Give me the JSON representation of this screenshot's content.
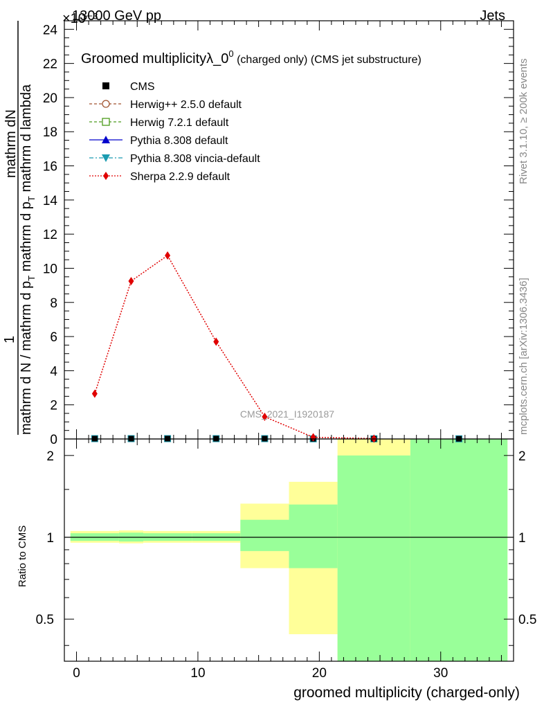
{
  "header": {
    "left": "13000 GeV pp",
    "right": "Jets",
    "exponent": "×10⁻³"
  },
  "side": {
    "rivet": "Rivet 3.1.10, ≥ 200k events",
    "mcplots": "mcplots.cern.ch [arXiv:1306.3436]"
  },
  "chart_data": {
    "type": "line",
    "title": "Groomed multiplicityλ_0",
    "title_sup": "0",
    "title_suffix": " (charged only) (CMS jet substructure)",
    "watermark": "CMS_2021_I1920187",
    "ylabel_top": "mathrm dN",
    "ylabel_one": "1",
    "ylabel_bottom": "mathrm d N / mathrm d p",
    "ylabel_bottom_sub": "T",
    "ylabel_bottom_end": " mathrm d p",
    "ylabel_bottom_sub2": "T",
    "ylabel_bottom_end2": " mathrm d lambda",
    "ratio_ylabel": "Ratio to CMS",
    "xlabel": "groomed multiplicity (charged-only)",
    "xlim": [
      -1,
      36
    ],
    "ylim": [
      0,
      24.5
    ],
    "y_scale_exponent": -3,
    "ratio_ylim": [
      0.35,
      2.3
    ],
    "x_ticks": [
      "0",
      "10",
      "20",
      "30"
    ],
    "y_ticks": [
      "0",
      "2",
      "4",
      "6",
      "8",
      "10",
      "12",
      "14",
      "16",
      "18",
      "20",
      "22",
      "24"
    ],
    "ratio_ticks": [
      "0.5",
      "1",
      "2"
    ],
    "legend": [
      {
        "label": "CMS",
        "color": "#000000",
        "marker": "square-filled",
        "line": "none"
      },
      {
        "label": "Herwig++ 2.5.0 default",
        "color": "#a0522d",
        "marker": "circle-open",
        "line": "dashed"
      },
      {
        "label": "Herwig 7.2.1 default",
        "color": "#4b9a1a",
        "marker": "square-open",
        "line": "dashed"
      },
      {
        "label": "Pythia 8.308 default",
        "color": "#0000cc",
        "marker": "triangle-up",
        "line": "solid"
      },
      {
        "label": "Pythia 8.308 vincia-default",
        "color": "#1a9bb0",
        "marker": "triangle-down",
        "line": "dashdot"
      },
      {
        "label": "Sherpa 2.2.9 default",
        "color": "#e00000",
        "marker": "diamond",
        "line": "dotted"
      }
    ],
    "cms_points": {
      "x": [
        1.5,
        4.5,
        7.5,
        11.5,
        15.5,
        19.5,
        24.5,
        31.5
      ],
      "y": [
        0.02,
        0.02,
        0.02,
        0.02,
        0.02,
        0.01,
        0.01,
        0.01
      ]
    },
    "sherpa_points": {
      "x": [
        1.5,
        4.5,
        7.5,
        11.5,
        15.5,
        19.5,
        24.5
      ],
      "y": [
        2.65,
        9.25,
        10.75,
        5.7,
        1.3,
        0.1,
        0.02
      ]
    },
    "ratio_bands": [
      {
        "x0": -0.5,
        "x1": 3.5,
        "y_lo": 0.955,
        "y_hi": 1.055,
        "g_lo": 0.97,
        "g_hi": 1.035
      },
      {
        "x0": 3.5,
        "x1": 5.5,
        "y_lo": 0.95,
        "y_hi": 1.06,
        "g_lo": 0.965,
        "g_hi": 1.04
      },
      {
        "x0": 5.5,
        "x1": 9.5,
        "y_lo": 0.955,
        "y_hi": 1.055,
        "g_lo": 0.97,
        "g_hi": 1.035
      },
      {
        "x0": 9.5,
        "x1": 13.5,
        "y_lo": 0.955,
        "y_hi": 1.055,
        "g_lo": 0.97,
        "g_hi": 1.035
      },
      {
        "x0": 13.5,
        "x1": 17.5,
        "y_lo": 0.77,
        "y_hi": 1.33,
        "g_lo": 0.89,
        "g_hi": 1.16
      },
      {
        "x0": 17.5,
        "x1": 21.5,
        "y_lo": 0.44,
        "y_hi": 1.6,
        "g_lo": 0.77,
        "g_hi": 1.32
      },
      {
        "x0": 21.5,
        "x1": 27.5,
        "y_lo": 0.35,
        "y_hi": 2.3,
        "g_lo": 0.35,
        "g_hi": 2.0
      },
      {
        "x0": 27.5,
        "x1": 35.5,
        "y_lo": 0.35,
        "y_hi": 2.3,
        "g_lo": 0.35,
        "g_hi": 2.3
      }
    ]
  }
}
